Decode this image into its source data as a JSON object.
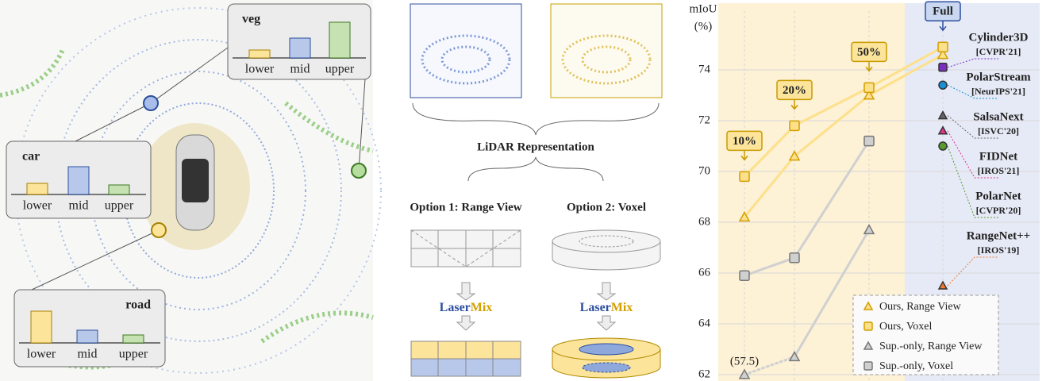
{
  "left_panel": {
    "callouts": [
      {
        "label": "veg",
        "categories": [
          "lower",
          "mid",
          "upper"
        ],
        "values": [
          1,
          2.5,
          4.5
        ]
      },
      {
        "label": "car",
        "categories": [
          "lower",
          "mid",
          "upper"
        ],
        "values": [
          1.4,
          3.5,
          1.2
        ]
      },
      {
        "label": "road",
        "categories": [
          "lower",
          "mid",
          "upper"
        ],
        "values": [
          4,
          1.6,
          1
        ]
      }
    ]
  },
  "middle_panel": {
    "title": "LiDAR Representation",
    "option1": "Option 1: Range View",
    "option2": "Option 2: Voxel",
    "method_part1": "Laser",
    "method_part2": "Mix"
  },
  "chart_data": {
    "type": "line",
    "ylabel": "mIoU",
    "yunit": "(%)",
    "categories": [
      "10%",
      "20%",
      "50%",
      "Full"
    ],
    "ylim": [
      62,
      76
    ],
    "yticks": [
      62,
      64,
      66,
      68,
      70,
      72,
      74
    ],
    "grid": true,
    "series": [
      {
        "name": "Ours, Range View",
        "marker": "triangle",
        "color": "#f2b705",
        "values": [
          68.2,
          70.6,
          73.0,
          74.6
        ]
      },
      {
        "name": "Ours, Voxel",
        "marker": "square",
        "color": "#f2b705",
        "values": [
          69.8,
          71.8,
          73.3,
          74.9
        ]
      },
      {
        "name": "Sup.-only, Range View",
        "marker": "triangle",
        "color": "#8c8c8c",
        "values": [
          57.5,
          62.7,
          67.7,
          null
        ],
        "value_labels": [
          "(57.5)",
          null,
          null,
          null
        ]
      },
      {
        "name": "Sup.-only, Voxel",
        "marker": "square",
        "color": "#8c8c8c",
        "values": [
          65.9,
          66.6,
          71.2,
          null
        ]
      }
    ],
    "references": [
      {
        "name": "Cylinder3D",
        "venue": "[CVPR'21]",
        "marker": "square",
        "color": "#7b2fbe",
        "value": 74.1
      },
      {
        "name": "PolarStream",
        "venue": "[NeurIPS'21]",
        "marker": "circle",
        "color": "#1a8fd6",
        "value": 73.4
      },
      {
        "name": "SalsaNext",
        "venue": "[ISVC'20]",
        "marker": "triangle",
        "color": "#666666",
        "value": 72.2
      },
      {
        "name": "FIDNet",
        "venue": "[IROS'21]",
        "marker": "triangle",
        "color": "#e0338a",
        "value": 71.6
      },
      {
        "name": "PolarNet",
        "venue": "[CVPR'20]",
        "marker": "circle",
        "color": "#5a9a2e",
        "value": 71.0
      },
      {
        "name": "RangeNet++",
        "venue": "[IROS'19]",
        "marker": "triangle",
        "color": "#ee7a30",
        "value": 65.5
      }
    ]
  }
}
